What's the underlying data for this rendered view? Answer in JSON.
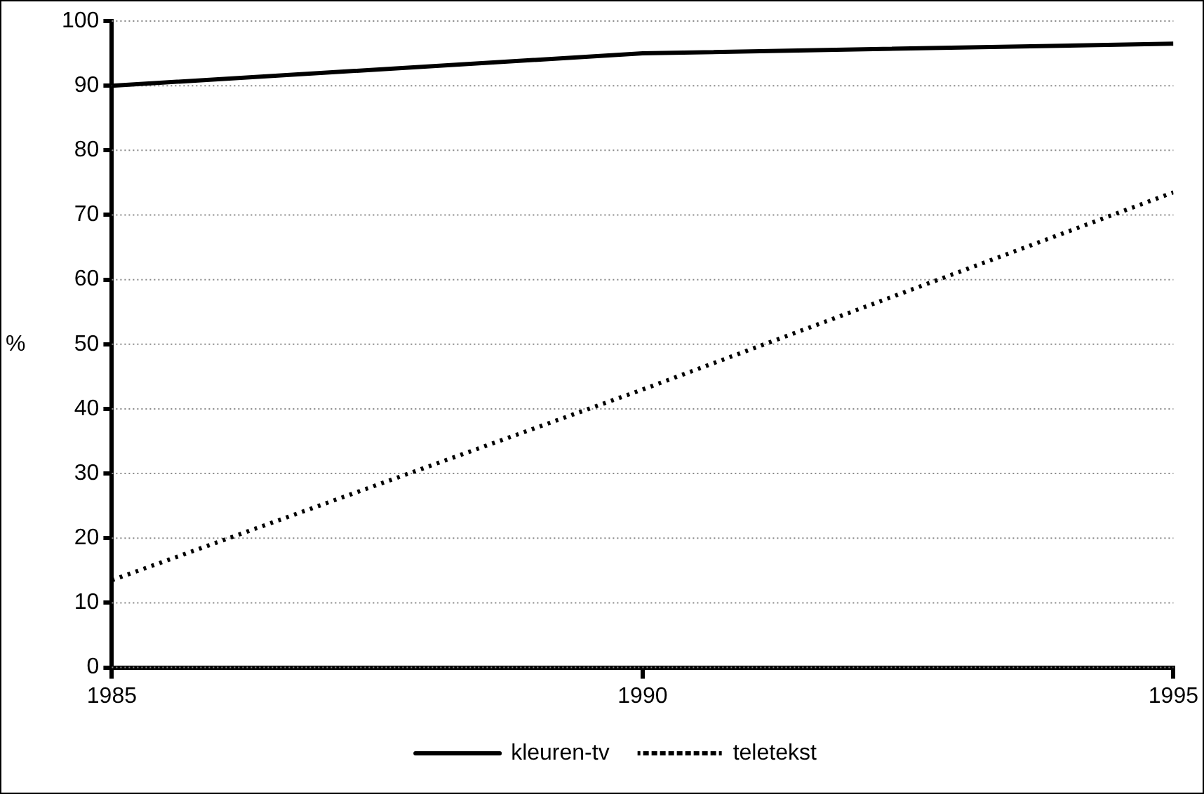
{
  "chart_data": {
    "type": "line",
    "ylabel": "%",
    "x": [
      1985,
      1990,
      1995
    ],
    "xlim": [
      1985,
      1995
    ],
    "xticks": [
      1985,
      1990,
      1995
    ],
    "ylim": [
      0,
      100
    ],
    "yticks": [
      0,
      10,
      20,
      30,
      40,
      50,
      60,
      70,
      80,
      90,
      100
    ],
    "grid": "y",
    "legend": "bottom",
    "marker": "none",
    "series": [
      {
        "name": "kleuren-tv",
        "color": "#000000",
        "line_style": "solid",
        "values": [
          90,
          95,
          96.5
        ]
      },
      {
        "name": "teletekst",
        "color": "#000000",
        "line_style": "dotted",
        "values": [
          13.5,
          43,
          73.5
        ]
      }
    ]
  }
}
